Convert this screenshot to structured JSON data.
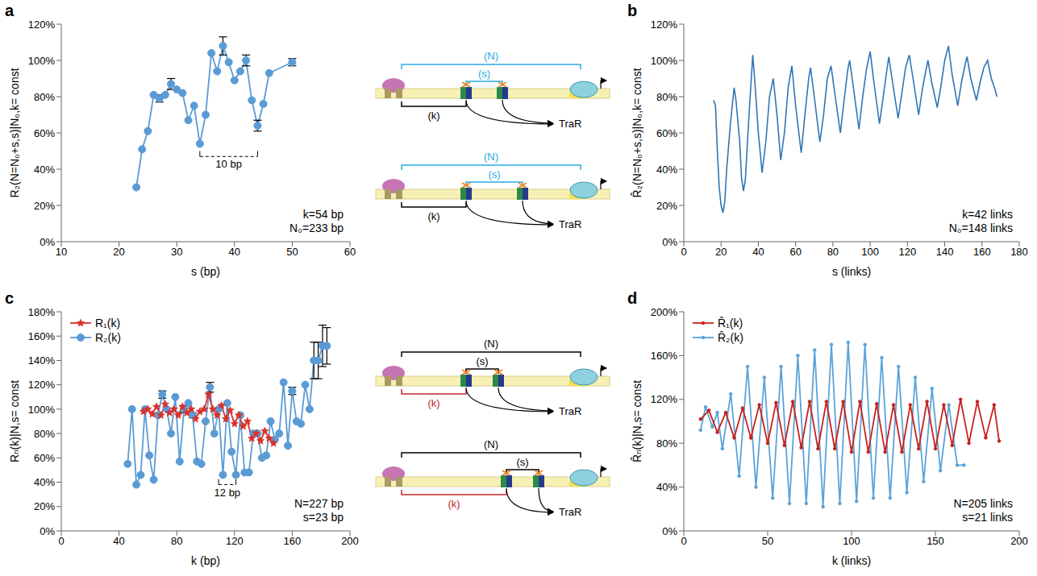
{
  "chart_data": [
    {
      "title": "a",
      "type": "line",
      "x_label": "s (bp)",
      "y_label": "R₂(N=N₀+s,s)|N₀,k= const",
      "xlim": [
        10,
        60
      ],
      "xticks": [
        10,
        20,
        30,
        40,
        50,
        60
      ],
      "ylim": [
        0,
        120
      ],
      "yticks": [
        {
          "value": 0,
          "label": "0%"
        },
        {
          "value": 20,
          "label": "20%"
        },
        {
          "value": 40,
          "label": "40%"
        },
        {
          "value": 60,
          "label": "60%"
        },
        {
          "value": 80,
          "label": "80%"
        },
        {
          "value": 100,
          "label": "100%"
        },
        {
          "value": 120,
          "label": "120%"
        }
      ],
      "annotations": [
        "k=54 bp",
        "N₀=233 bp"
      ],
      "brackets": [
        {
          "text": "10 bp",
          "from": 34,
          "to": 44,
          "y": 47
        }
      ],
      "series": [
        {
          "color": "#5b9bd5",
          "marker": "circle",
          "x": [
            23,
            24,
            25,
            26,
            27,
            28,
            29,
            30,
            31,
            32,
            33,
            34,
            35,
            36,
            37,
            38,
            39,
            40,
            41,
            42,
            43,
            44,
            45,
            46,
            50
          ],
          "values": [
            30,
            51,
            61,
            81,
            79,
            81,
            87,
            84,
            82,
            67,
            75,
            54,
            70,
            104,
            94,
            108,
            99,
            89,
            94,
            100,
            78,
            64,
            76,
            93,
            99
          ],
          "errors": [
            null,
            null,
            null,
            null,
            2,
            null,
            3,
            null,
            null,
            null,
            null,
            null,
            null,
            null,
            null,
            5,
            null,
            null,
            null,
            3,
            null,
            3,
            null,
            null,
            2
          ]
        }
      ]
    },
    {
      "title": "b",
      "type": "line",
      "x_label": "s (links)",
      "y_label": "R̂₂(N=N₀+s,s)|N₀,k= const",
      "xlim": [
        0,
        180
      ],
      "xticks": [
        0,
        20,
        40,
        60,
        80,
        100,
        120,
        140,
        160,
        180
      ],
      "ylim": [
        0,
        120
      ],
      "yticks": [
        {
          "value": 0,
          "label": "0%"
        },
        {
          "value": 20,
          "label": "20%"
        },
        {
          "value": 40,
          "label": "40%"
        },
        {
          "value": 60,
          "label": "60%"
        },
        {
          "value": 80,
          "label": "80%"
        },
        {
          "value": 100,
          "label": "100%"
        },
        {
          "value": 120,
          "label": "120%"
        }
      ],
      "annotations": [
        "k=42 links",
        "N₀=148 links"
      ],
      "series": [
        {
          "color": "#2f75b5",
          "marker": "none",
          "x": [
            16,
            17,
            18,
            19,
            20,
            21,
            22,
            23,
            25,
            27,
            28,
            30,
            31,
            32,
            33,
            35,
            37,
            38,
            40,
            42,
            44,
            46,
            48,
            50,
            52,
            54,
            56,
            58,
            60,
            63,
            65,
            67,
            68,
            70,
            73,
            75,
            77,
            79,
            81,
            84,
            86,
            88,
            89,
            91,
            94,
            96,
            98,
            100,
            102,
            105,
            107,
            109,
            110,
            112,
            115,
            117,
            119,
            121,
            123,
            126,
            128,
            130,
            131,
            133,
            136,
            138,
            140,
            142,
            144,
            147,
            149,
            151,
            152,
            154,
            157,
            159,
            161,
            163,
            165,
            167,
            168
          ],
          "values": [
            78,
            75,
            50,
            30,
            20,
            16,
            22,
            40,
            65,
            85,
            78,
            55,
            35,
            28,
            34,
            70,
            103,
            90,
            60,
            38,
            55,
            80,
            90,
            70,
            45,
            60,
            85,
            97,
            75,
            49,
            70,
            90,
            96,
            80,
            55,
            70,
            90,
            97,
            82,
            60,
            78,
            95,
            100,
            85,
            62,
            80,
            95,
            105,
            88,
            65,
            80,
            95,
            102,
            88,
            68,
            82,
            96,
            103,
            90,
            70,
            84,
            95,
            100,
            88,
            74,
            86,
            100,
            108,
            92,
            75,
            88,
            98,
            102,
            90,
            78,
            88,
            96,
            100,
            90,
            84,
            80
          ]
        }
      ]
    },
    {
      "title": "c",
      "type": "line",
      "x_label": "k (bp)",
      "y_label": "Rₙ(k)|N,s= const",
      "legend": "upper left",
      "xlim": [
        0,
        200
      ],
      "xticks": [
        0,
        40,
        80,
        120,
        160,
        200
      ],
      "ylim": [
        0,
        180
      ],
      "yticks": [
        {
          "value": 0,
          "label": "0%"
        },
        {
          "value": 20,
          "label": "20%"
        },
        {
          "value": 40,
          "label": "40%"
        },
        {
          "value": 60,
          "label": "60%"
        },
        {
          "value": 80,
          "label": "80%"
        },
        {
          "value": 100,
          "label": "100%"
        },
        {
          "value": 120,
          "label": "120%"
        },
        {
          "value": 140,
          "label": "140%"
        },
        {
          "value": 160,
          "label": "160%"
        },
        {
          "value": 180,
          "label": "180%"
        }
      ],
      "annotations": [
        "N=227 bp",
        "s=23 bp"
      ],
      "brackets": [
        {
          "text": "12 bp",
          "from": 109,
          "to": 121,
          "y": 38
        }
      ],
      "series": [
        {
          "name": "R₁(k)",
          "color": "#d9312b",
          "marker": "star",
          "x": [
            57,
            60,
            63,
            66,
            69,
            72,
            75,
            78,
            81,
            84,
            87,
            90,
            93,
            96,
            99,
            102,
            105,
            108,
            111,
            114,
            117,
            120,
            123,
            126,
            129,
            132,
            135,
            138,
            141,
            144,
            147
          ],
          "values": [
            98,
            100,
            96,
            102,
            95,
            104,
            97,
            100,
            95,
            102,
            97,
            100,
            92,
            98,
            100,
            112,
            100,
            95,
            103,
            92,
            99,
            88,
            95,
            86,
            90,
            76,
            80,
            74,
            82,
            76,
            72
          ]
        },
        {
          "name": "R₂(k)",
          "color": "#5b9bd5",
          "marker": "circle",
          "x": [
            46,
            49,
            52,
            55,
            58,
            61,
            64,
            67,
            70,
            73,
            76,
            79,
            82,
            85,
            88,
            91,
            94,
            97,
            100,
            103,
            106,
            109,
            112,
            115,
            118,
            121,
            124,
            127,
            130,
            133,
            136,
            139,
            142,
            145,
            148,
            151,
            154,
            157,
            160,
            163,
            166,
            169,
            172,
            175,
            178,
            181,
            184
          ],
          "values": [
            55,
            100,
            38,
            46,
            100,
            62,
            42,
            95,
            112,
            100,
            80,
            110,
            57,
            100,
            105,
            95,
            57,
            55,
            90,
            118,
            80,
            100,
            46,
            105,
            65,
            46,
            95,
            48,
            48,
            80,
            80,
            60,
            62,
            90,
            75,
            80,
            122,
            70,
            115,
            90,
            88,
            120,
            100,
            140,
            140,
            152,
            152
          ],
          "errors": [
            null,
            null,
            null,
            null,
            null,
            null,
            null,
            null,
            3,
            null,
            null,
            null,
            null,
            3,
            null,
            2,
            null,
            null,
            null,
            4,
            null,
            null,
            null,
            null,
            null,
            null,
            null,
            null,
            null,
            null,
            null,
            null,
            null,
            null,
            null,
            null,
            null,
            null,
            3,
            null,
            null,
            null,
            null,
            15,
            15,
            17,
            15
          ]
        }
      ]
    },
    {
      "title": "d",
      "type": "line",
      "x_label": "k (links)",
      "y_label": "R̂ₙ(k)|N,s= const",
      "legend": "upper left",
      "xlim": [
        0,
        200
      ],
      "xticks": [
        0,
        50,
        100,
        150,
        200
      ],
      "ylim": [
        0,
        200
      ],
      "yticks": [
        {
          "value": 0,
          "label": "0%"
        },
        {
          "value": 40,
          "label": "40%"
        },
        {
          "value": 80,
          "label": "80%"
        },
        {
          "value": 120,
          "label": "120%"
        },
        {
          "value": 160,
          "label": "160%"
        },
        {
          "value": 200,
          "label": "200%"
        }
      ],
      "annotations": [
        "N=205 links",
        "s=21 links"
      ],
      "series": [
        {
          "name": "R̂₁(k)",
          "color": "#c8201e",
          "marker": "dot",
          "x": [
            10,
            15,
            20,
            25,
            30,
            35,
            40,
            45,
            50,
            55,
            60,
            65,
            70,
            75,
            80,
            85,
            90,
            95,
            100,
            105,
            110,
            115,
            120,
            125,
            130,
            135,
            140,
            145,
            150,
            155,
            160,
            165,
            170,
            175,
            180,
            185,
            188
          ],
          "values": [
            102,
            110,
            90,
            108,
            85,
            112,
            85,
            115,
            80,
            117,
            78,
            118,
            76,
            118,
            75,
            118,
            75,
            118,
            72,
            118,
            72,
            116,
            72,
            115,
            72,
            115,
            75,
            118,
            75,
            115,
            78,
            120,
            80,
            118,
            85,
            115,
            82
          ]
        },
        {
          "name": "R̂₂(k)",
          "color": "#5ba3d9",
          "marker": "dot",
          "x": [
            10,
            13,
            17,
            20,
            23,
            28,
            33,
            38,
            43,
            48,
            53,
            58,
            63,
            68,
            73,
            78,
            83,
            88,
            93,
            98,
            103,
            108,
            113,
            118,
            123,
            128,
            133,
            138,
            143,
            148,
            153,
            158,
            163,
            167
          ],
          "values": [
            92,
            113,
            95,
            108,
            75,
            125,
            50,
            150,
            40,
            140,
            30,
            150,
            25,
            160,
            25,
            165,
            22,
            170,
            25,
            172,
            27,
            170,
            30,
            158,
            30,
            150,
            35,
            140,
            45,
            130,
            55,
            115,
            60,
            60
          ]
        }
      ]
    }
  ],
  "diagrams": [
    {
      "colors": {
        "N": "#29abe2",
        "s": "#29abe2",
        "k": "#000000"
      },
      "rows": [
        {
          "N": "(N)",
          "s": "(s)",
          "k": "(k)",
          "protein": "TraR"
        },
        {
          "N": "(N)",
          "s": "(s)",
          "k": "(k)",
          "protein": "TraR"
        }
      ]
    },
    {
      "colors": {
        "N": "#000000",
        "s": "#000000",
        "k": "#c1272d"
      },
      "rows": [
        {
          "N": "(N)",
          "s": "(s)",
          "k": "(k)",
          "protein": "TraR"
        },
        {
          "N": "(N)",
          "s": "(s)",
          "k": "(k)",
          "protein": "TraR"
        }
      ]
    }
  ]
}
